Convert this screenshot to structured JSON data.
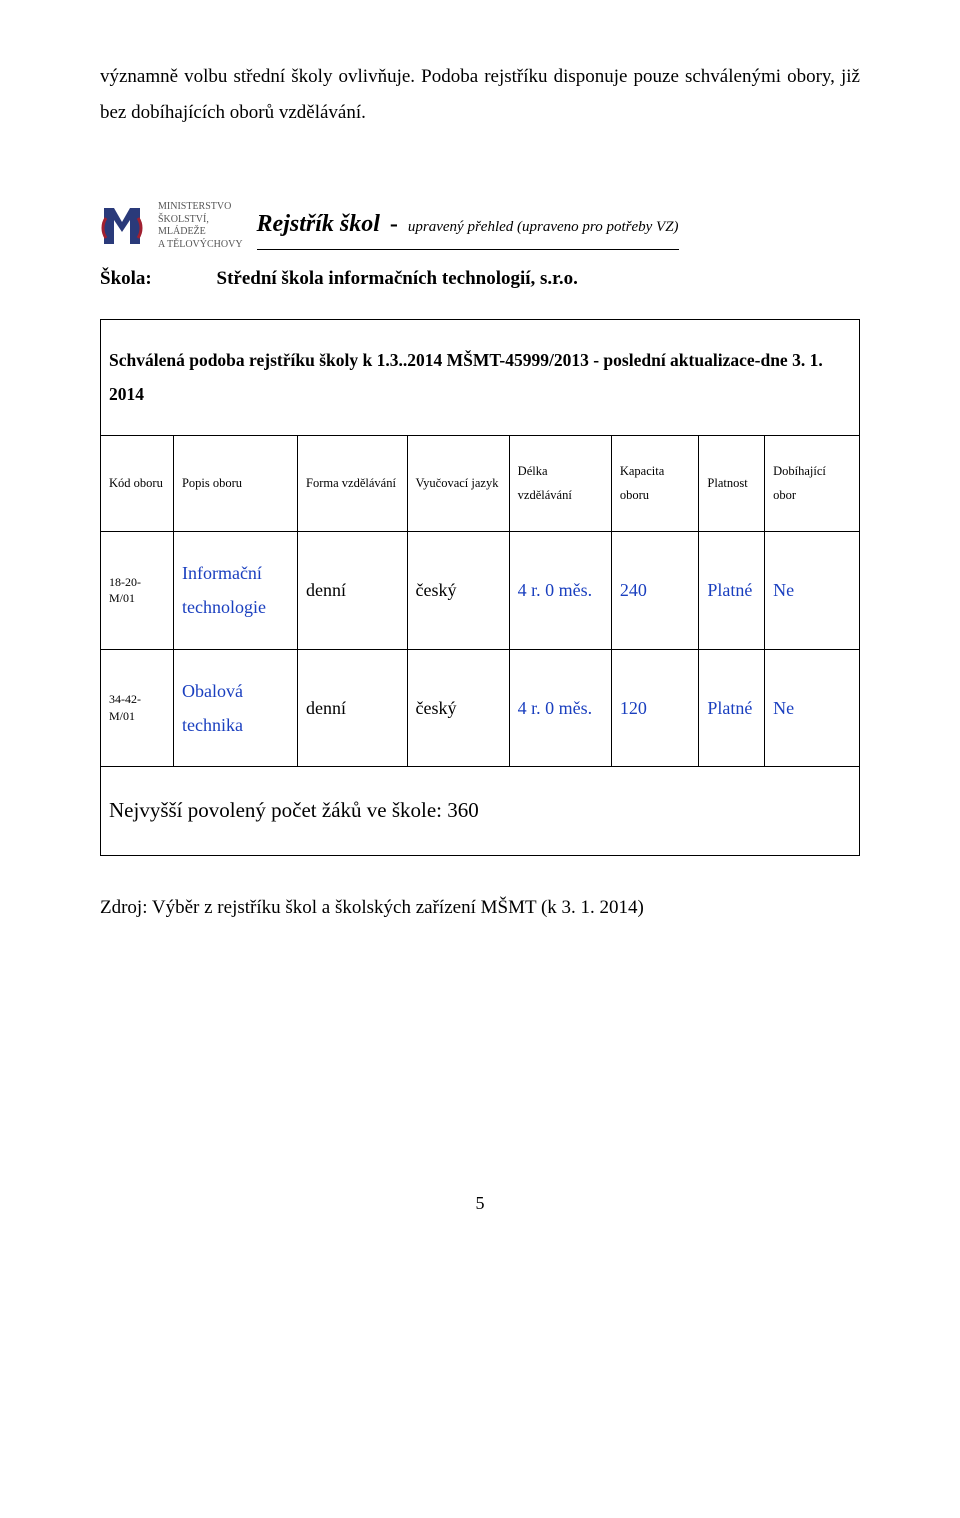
{
  "intro": "významně volbu střední školy ovlivňuje. Podoba rejstříku disponuje pouze schválenými obory, již bez dobíhajících oborů vzdělávání.",
  "ministry_lines": [
    "MINISTERSTVO",
    "ŠKOLSTVÍ,",
    "MLÁDEŽE",
    "A TĚLOVÝCHOVY"
  ],
  "rejstrik": {
    "title": "Rejstřík škol",
    "dash": "-",
    "subtitle": "upravený přehled (upraveno pro potřeby VZ)"
  },
  "skola": {
    "label": "Škola:",
    "value": "Střední škola informačních technologií, s.r.o."
  },
  "approved_line": "Schválená podoba rejstříku školy k 1.3..2014  MŠMT-45999/2013 - poslední aktualizace-dne 3. 1. 2014",
  "col_headers": [
    "Kód oboru",
    "Popis oboru",
    "Forma vzdělávání",
    "Vyučovací jazyk",
    "Délka vzdělávání",
    "Kapacita oboru",
    "Platnost",
    "Dobíhající obor"
  ],
  "col_widths_pct": [
    10,
    17,
    15,
    14,
    14,
    12,
    9,
    13
  ],
  "rows": [
    {
      "kod": "18-20-M/01",
      "popis": "Informační technologie",
      "forma": "denní",
      "jazyk": "český",
      "delka": "4 r. 0 měs.",
      "kapacita": "240",
      "platnost": "Platné",
      "dobihajici": "Ne"
    },
    {
      "kod": "34-42-M/01",
      "popis": "Obalová technika",
      "forma": "denní",
      "jazyk": "český",
      "delka": "4 r. 0 měs.",
      "kapacita": "120",
      "platnost": "Platné",
      "dobihajici": "Ne"
    }
  ],
  "footer_line": "Nejvyšší povolený počet žáků ve škole: 360",
  "source_line": "Zdroj: Výběr z rejstříku škol a školských zařízení MŠMT (k 3. 1. 2014)",
  "page_number": "5",
  "colors": {
    "link": "#1a3fbf",
    "text": "#000000"
  }
}
